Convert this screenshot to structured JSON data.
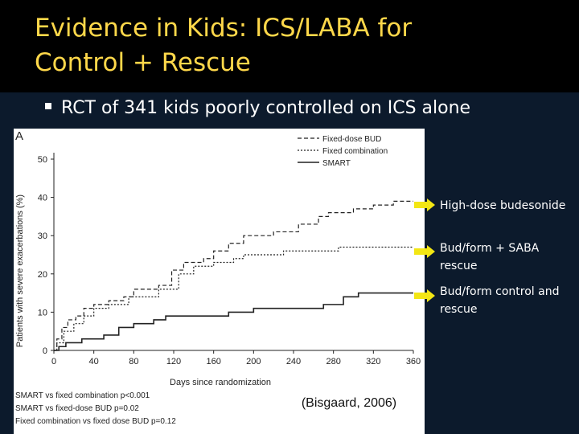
{
  "slide": {
    "title_line1": "Evidence in Kids: ICS/LABA for",
    "title_line2": "Control + Rescue",
    "bullet": "RCT of 341 kids poorly controlled on ICS alone",
    "citation": "(Bisgaard, 2006)"
  },
  "callouts": [
    {
      "lines": [
        "High-dose budesonide"
      ]
    },
    {
      "lines": [
        "Bud/form + SABA",
        "rescue"
      ]
    },
    {
      "lines": [
        "Bud/form control and",
        "rescue"
      ]
    }
  ],
  "colors": {
    "title": "#ffd84a",
    "background": "#0c1a2c",
    "arrow": "#f3e614"
  },
  "stats": [
    "SMART vs fixed combination p<0.001",
    "SMART vs fixed-dose BUD p=0.02",
    "Fixed combination vs fixed dose BUD p=0.12"
  ],
  "chart_data": {
    "type": "line",
    "panel_label": "A",
    "xlabel": "Days since randomization",
    "ylabel": "Patients with severe exacerbations (%)",
    "xlim": [
      0,
      360
    ],
    "ylim": [
      0,
      50
    ],
    "xticks": [
      0,
      40,
      80,
      120,
      160,
      200,
      240,
      280,
      320,
      360
    ],
    "yticks": [
      0,
      10,
      20,
      30,
      40,
      50
    ],
    "legend_position": "top",
    "series": [
      {
        "name": "Fixed-dose BUD",
        "style": "dashed",
        "points": [
          [
            0,
            0
          ],
          [
            3,
            3
          ],
          [
            8,
            6
          ],
          [
            14,
            8
          ],
          [
            22,
            9
          ],
          [
            30,
            11
          ],
          [
            40,
            12
          ],
          [
            55,
            13
          ],
          [
            70,
            14
          ],
          [
            80,
            16
          ],
          [
            105,
            17
          ],
          [
            118,
            21
          ],
          [
            130,
            23
          ],
          [
            150,
            24
          ],
          [
            160,
            26
          ],
          [
            175,
            28
          ],
          [
            190,
            30
          ],
          [
            220,
            31
          ],
          [
            245,
            33
          ],
          [
            265,
            35
          ],
          [
            275,
            36
          ],
          [
            300,
            37
          ],
          [
            320,
            38
          ],
          [
            340,
            39
          ],
          [
            360,
            39
          ]
        ]
      },
      {
        "name": "Fixed combination",
        "style": "dotted",
        "points": [
          [
            0,
            0
          ],
          [
            3,
            2
          ],
          [
            10,
            5
          ],
          [
            20,
            7
          ],
          [
            30,
            9
          ],
          [
            40,
            11
          ],
          [
            55,
            12
          ],
          [
            75,
            14
          ],
          [
            105,
            16
          ],
          [
            125,
            20
          ],
          [
            140,
            22
          ],
          [
            160,
            23
          ],
          [
            180,
            24
          ],
          [
            190,
            25
          ],
          [
            230,
            26
          ],
          [
            265,
            26
          ],
          [
            285,
            27
          ],
          [
            360,
            27
          ]
        ]
      },
      {
        "name": "SMART",
        "style": "solid",
        "points": [
          [
            0,
            0
          ],
          [
            5,
            1
          ],
          [
            12,
            2
          ],
          [
            28,
            3
          ],
          [
            50,
            4
          ],
          [
            65,
            6
          ],
          [
            80,
            7
          ],
          [
            100,
            8
          ],
          [
            112,
            9
          ],
          [
            175,
            10
          ],
          [
            200,
            11
          ],
          [
            270,
            12
          ],
          [
            290,
            14
          ],
          [
            305,
            15
          ],
          [
            360,
            15
          ]
        ]
      }
    ]
  }
}
